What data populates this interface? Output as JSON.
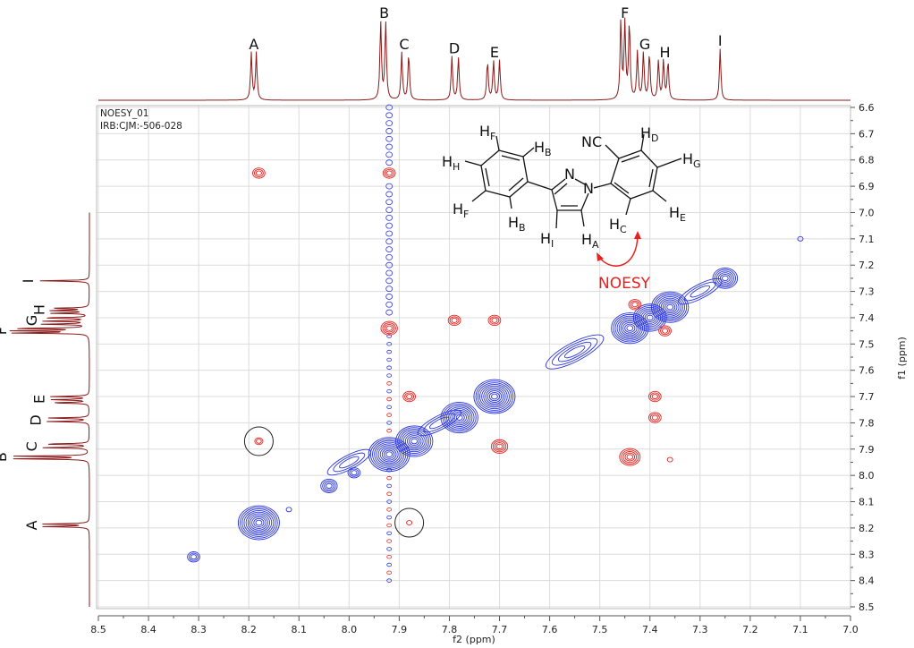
{
  "chart_data": {
    "type": "contour",
    "title_lines": [
      "NOESY_01",
      "IRB:CJM:-506-028"
    ],
    "xlabel": "f2 (ppm)",
    "ylabel": "f1 (ppm)",
    "xlim": [
      8.5,
      7.0
    ],
    "ylim": [
      6.6,
      8.5
    ],
    "x_ticks": [
      "8.5",
      "8.4",
      "8.3",
      "8.2",
      "8.1",
      "8.0",
      "7.9",
      "7.8",
      "7.7",
      "7.6",
      "7.5",
      "7.4",
      "7.3",
      "7.2",
      "7.1",
      "7.0"
    ],
    "y_ticks": [
      "6.6",
      "6.7",
      "6.8",
      "6.9",
      "7.0",
      "7.1",
      "7.2",
      "7.3",
      "7.4",
      "7.5",
      "7.6",
      "7.7",
      "7.8",
      "7.9",
      "8.0",
      "8.1",
      "8.2",
      "8.3",
      "8.4",
      "8.5"
    ],
    "grid": true,
    "colors": {
      "positive": "#e8201c",
      "negative": "#2a35e0",
      "spectrum": "#8b1a1a",
      "grid": "#dcdcdc"
    },
    "proton_peaks": [
      {
        "label": "A",
        "ppm": 8.19,
        "lines": [
          8.195,
          8.185
        ],
        "height": 0.6
      },
      {
        "label": "B",
        "ppm": 7.93,
        "lines": [
          7.937,
          7.927
        ],
        "height": 1.0
      },
      {
        "label": "C",
        "ppm": 7.89,
        "lines": [
          7.895,
          7.881
        ],
        "height": 0.6
      },
      {
        "label": "D",
        "ppm": 7.79,
        "lines": [
          7.795,
          7.782
        ],
        "height": 0.55
      },
      {
        "label": "E",
        "ppm": 7.71,
        "lines": [
          7.724,
          7.712,
          7.7
        ],
        "height": 0.5
      },
      {
        "label": "F",
        "ppm": 7.45,
        "lines": [
          7.458,
          7.45,
          7.441
        ],
        "height": 1.0
      },
      {
        "label": "G",
        "ppm": 7.41,
        "lines": [
          7.425,
          7.413,
          7.401
        ],
        "height": 0.6
      },
      {
        "label": "H",
        "ppm": 7.37,
        "lines": [
          7.383,
          7.373,
          7.364
        ],
        "height": 0.5
      },
      {
        "label": "I",
        "ppm": 7.26,
        "lines": [
          7.26
        ],
        "height": 0.65
      }
    ],
    "diagonal_peaks": [
      {
        "f2": 8.31,
        "f1": 8.31,
        "levels": 3
      },
      {
        "f2": 8.18,
        "f1": 8.18,
        "levels": 10
      },
      {
        "f2": 8.12,
        "f1": 8.13,
        "levels": 1
      },
      {
        "f2": 8.04,
        "f1": 8.04,
        "levels": 4
      },
      {
        "f2": 7.99,
        "f1": 7.99,
        "levels": 3
      },
      {
        "f2": 7.92,
        "f1": 7.92,
        "levels": 10
      },
      {
        "f2": 7.87,
        "f1": 7.87,
        "levels": 9
      },
      {
        "f2": 7.78,
        "f1": 7.78,
        "levels": 9
      },
      {
        "f2": 7.71,
        "f1": 7.7,
        "levels": 10
      },
      {
        "f2": 7.44,
        "f1": 7.44,
        "levels": 9
      },
      {
        "f2": 7.4,
        "f1": 7.4,
        "levels": 8
      },
      {
        "f2": 7.36,
        "f1": 7.36,
        "levels": 9
      },
      {
        "f2": 7.25,
        "f1": 7.25,
        "levels": 6
      },
      {
        "f2": 7.1,
        "f1": 7.1,
        "levels": 1
      }
    ],
    "diagonal_ridges": [
      {
        "f2": 8.0,
        "f1": 7.95,
        "levels": 3
      },
      {
        "f2": 7.82,
        "f1": 7.8,
        "levels": 3
      },
      {
        "f2": 7.55,
        "f1": 7.53,
        "levels": 4
      },
      {
        "f2": 7.3,
        "f1": 7.3,
        "levels": 3
      }
    ],
    "cross_peaks": [
      {
        "f2": 8.18,
        "f1": 6.85,
        "levels": 3
      },
      {
        "f2": 7.92,
        "f1": 6.85,
        "levels": 3
      },
      {
        "f2": 7.92,
        "f1": 7.44,
        "levels": 4
      },
      {
        "f2": 8.18,
        "f1": 7.87,
        "levels": 2,
        "circled": true
      },
      {
        "f2": 7.88,
        "f1": 8.18,
        "levels": 1,
        "circled": true
      },
      {
        "f2": 7.79,
        "f1": 7.41,
        "levels": 3
      },
      {
        "f2": 7.71,
        "f1": 7.41,
        "levels": 3
      },
      {
        "f2": 7.88,
        "f1": 7.7,
        "levels": 3
      },
      {
        "f2": 7.7,
        "f1": 7.89,
        "levels": 4
      },
      {
        "f2": 7.44,
        "f1": 7.93,
        "levels": 5
      },
      {
        "f2": 7.39,
        "f1": 7.7,
        "levels": 3
      },
      {
        "f2": 7.39,
        "f1": 7.78,
        "levels": 3
      },
      {
        "f2": 7.43,
        "f1": 7.35,
        "levels": 3
      },
      {
        "f2": 7.37,
        "f1": 7.45,
        "levels": 3
      },
      {
        "f2": 7.36,
        "f1": 7.94,
        "levels": 1
      }
    ],
    "t1_noise_f2": 7.92
  },
  "structure": {
    "labels": {
      "hf_top": {
        "h": "H",
        "sub": "F"
      },
      "hb_top": {
        "h": "H",
        "sub": "B"
      },
      "hh": {
        "h": "H",
        "sub": "H"
      },
      "hf_bot": {
        "h": "H",
        "sub": "F"
      },
      "hb_bot": {
        "h": "H",
        "sub": "B"
      },
      "hi": {
        "h": "H",
        "sub": "I"
      },
      "ha": {
        "h": "H",
        "sub": "A"
      },
      "hc": {
        "h": "H",
        "sub": "C"
      },
      "hd": {
        "h": "H",
        "sub": "D"
      },
      "hg": {
        "h": "H",
        "sub": "G"
      },
      "he": {
        "h": "H",
        "sub": "E"
      },
      "n2": "N",
      "n1": "N",
      "nc": "NC"
    },
    "arrow_label": "NOESY"
  }
}
